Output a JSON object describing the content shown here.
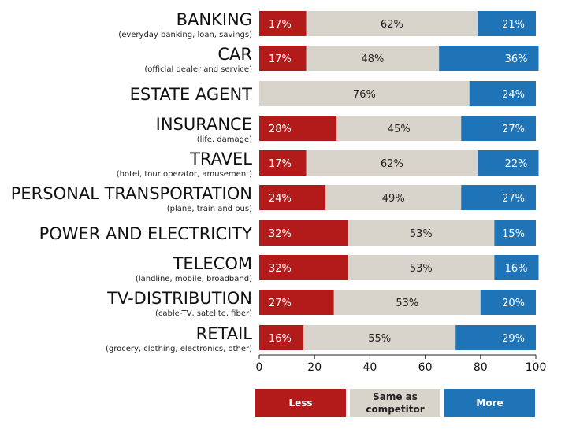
{
  "chart_data": {
    "type": "bar",
    "orientation": "horizontal",
    "stacked": true,
    "categories": [
      {
        "name": "BANKING",
        "sub": "(everyday banking, loan, savings)"
      },
      {
        "name": "CAR",
        "sub": "(official dealer and service)"
      },
      {
        "name": "ESTATE AGENT",
        "sub": ""
      },
      {
        "name": "INSURANCE",
        "sub": "(life, damage)"
      },
      {
        "name": "TRAVEL",
        "sub": "(hotel, tour operator, amusement)"
      },
      {
        "name": "PERSONAL TRANSPORTATION",
        "sub": "(plane, train and bus)"
      },
      {
        "name": "POWER AND ELECTRICITY",
        "sub": ""
      },
      {
        "name": "TELECOM",
        "sub": "(landline, mobile, broadband)"
      },
      {
        "name": "TV-DISTRIBUTION",
        "sub": "(cable-TV, satelite, fiber)"
      },
      {
        "name": "RETAIL",
        "sub": "(grocery, clothing, electronics, other)"
      }
    ],
    "series": [
      {
        "name": "Less",
        "color": "#b31b1b",
        "text_color": "#ffffff",
        "values": [
          17,
          17,
          0,
          28,
          17,
          24,
          32,
          32,
          27,
          16
        ],
        "labels": [
          "17%",
          "17%",
          "",
          "28%",
          "17%",
          "24%",
          "32%",
          "32%",
          "27%",
          "16%"
        ]
      },
      {
        "name": "Same as competitor",
        "color": "#d9d4cb",
        "text_color": "#222222",
        "values": [
          62,
          48,
          76,
          45,
          62,
          49,
          53,
          53,
          53,
          55
        ],
        "labels": [
          "62%",
          "48%",
          "76%",
          "45%",
          "62%",
          "49%",
          "53%",
          "53%",
          "53%",
          "55%"
        ]
      },
      {
        "name": "More",
        "color": "#1f73b7",
        "text_color": "#ffffff",
        "values": [
          21,
          36,
          24,
          27,
          22,
          27,
          15,
          16,
          20,
          29
        ],
        "labels": [
          "21%",
          "36%",
          "24%",
          "27%",
          "22%",
          "27%",
          "15%",
          "16%",
          "20%",
          "29%"
        ]
      }
    ],
    "x_ticks": [
      0,
      20,
      40,
      60,
      80,
      100
    ],
    "xlim": [
      0,
      100
    ],
    "legend": {
      "position": "bottom",
      "items": [
        {
          "line1": "Less",
          "line2": ""
        },
        {
          "line1": "Same as",
          "line2": "competitor"
        },
        {
          "line1": "More",
          "line2": ""
        }
      ]
    }
  }
}
